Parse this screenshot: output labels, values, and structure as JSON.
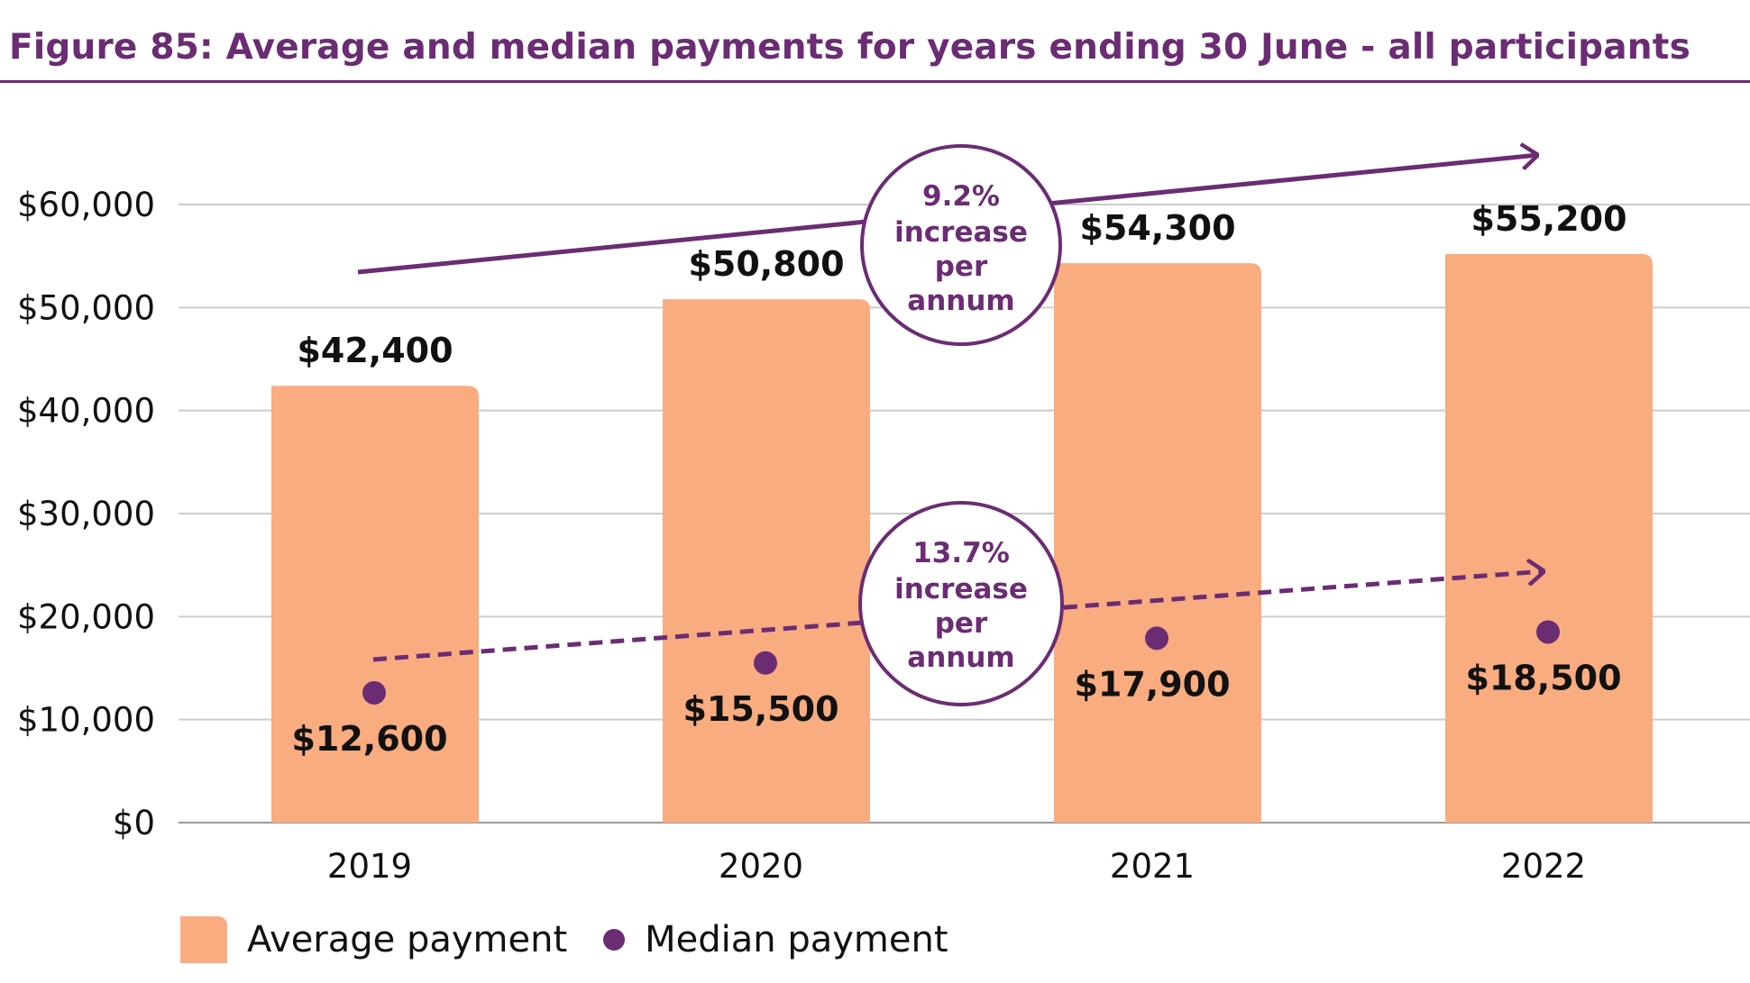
{
  "title": "Figure 85: Average and median payments for years ending 30 June - all participants",
  "colors": {
    "title": "#6b2c74",
    "bar": "#f9ac80",
    "median": "#6b2c74",
    "grid": "#cccccc",
    "text": "#111111"
  },
  "annotations": {
    "average_growth": [
      "9.2%",
      "increase",
      "per",
      "annum"
    ],
    "median_growth": [
      "13.7%",
      "increase",
      "per",
      "annum"
    ]
  },
  "legend": {
    "average": "Average payment",
    "median": "Median payment"
  },
  "chart_data": {
    "type": "bar",
    "categories": [
      "2019",
      "2020",
      "2021",
      "2022"
    ],
    "ylim": [
      0,
      60000
    ],
    "yticks": [
      0,
      10000,
      20000,
      30000,
      40000,
      50000,
      60000
    ],
    "ytick_labels": [
      "$0",
      "$10,000",
      "$20,000",
      "$30,000",
      "$40,000",
      "$50,000",
      "$60,000"
    ],
    "grid": true,
    "legend_position": "bottom-left",
    "series": [
      {
        "name": "Average payment",
        "type": "bar",
        "values": [
          42400,
          50800,
          54300,
          55200
        ],
        "labels": [
          "$42,400",
          "$50,800",
          "$54,300",
          "$55,200"
        ]
      },
      {
        "name": "Median payment",
        "type": "scatter",
        "values": [
          12600,
          15500,
          17900,
          18500
        ],
        "labels": [
          "$12,600",
          "$15,500",
          "$17,900",
          "$18,500"
        ]
      }
    ]
  }
}
